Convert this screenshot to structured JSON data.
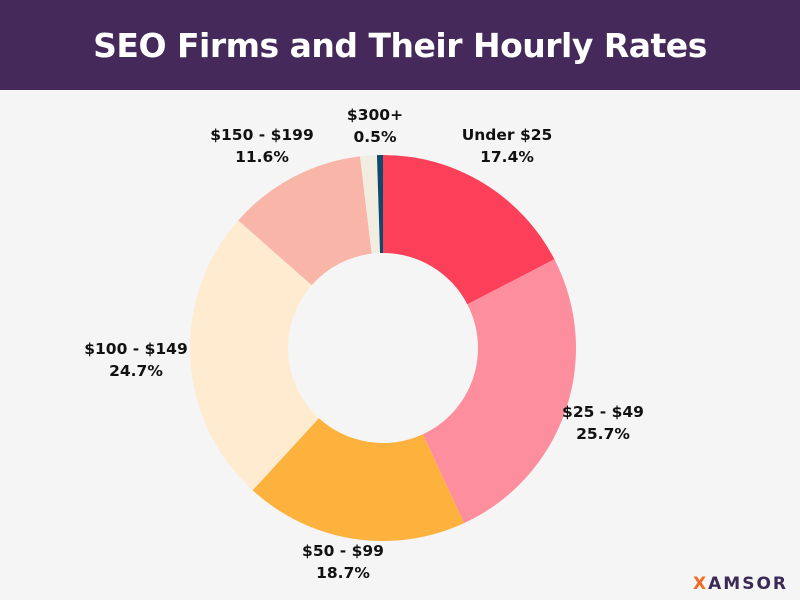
{
  "chart_data": {
    "type": "pie",
    "donut": true,
    "title": "SEO Firms and Their Hourly Rates",
    "start_angle": "top",
    "direction": "clockwise",
    "legend": "none",
    "slices": [
      {
        "label": "Under $25",
        "value": 17.4,
        "value_label": "17.4%",
        "color": "#fc4059"
      },
      {
        "label": "$25 - $49",
        "value": 25.7,
        "value_label": "25.7%",
        "color": "#fd8e9e"
      },
      {
        "label": "$50 - $99",
        "value": 18.7,
        "value_label": "18.7%",
        "color": "#feb23e"
      },
      {
        "label": "$100 - $149",
        "value": 24.7,
        "value_label": "24.7%",
        "color": "#feebd0"
      },
      {
        "label": "$150 - $199",
        "value": 11.6,
        "value_label": "11.6%",
        "color": "#f9b5a8"
      },
      {
        "label": "",
        "value": 1.4,
        "value_label": "",
        "color": "#f1ede0"
      },
      {
        "label": "$300+",
        "value": 0.5,
        "value_label": "0.5%",
        "color": "#0e4a6e"
      }
    ]
  },
  "header": {
    "bg_color": "#45295a"
  },
  "logo": {
    "prefix": "X",
    "rest": "AMSOR",
    "accent_color": "#f26a21"
  }
}
